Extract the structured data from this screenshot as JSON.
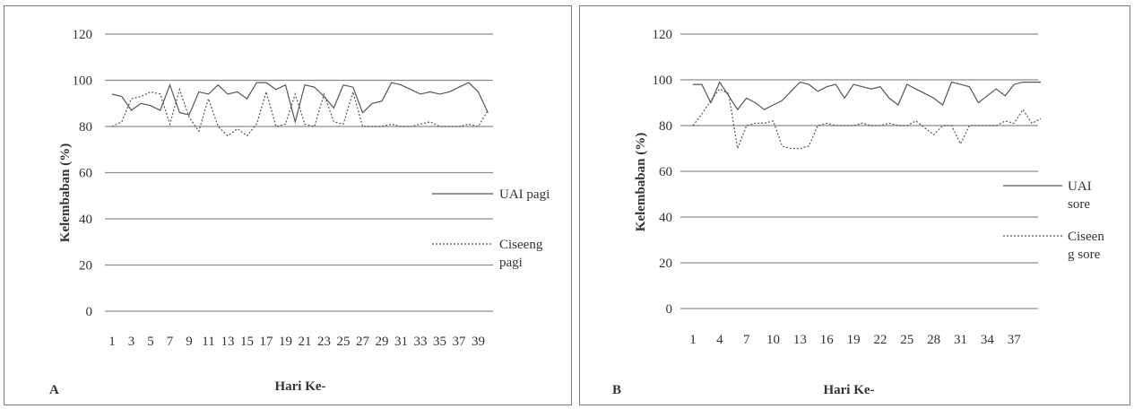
{
  "chart_data": [
    {
      "panel_label": "A",
      "type": "line",
      "xlabel": "Hari Ke-",
      "ylabel": "Kelembaban (%)",
      "ylim": [
        0,
        120
      ],
      "yticks": [
        0,
        20,
        40,
        60,
        80,
        100,
        120
      ],
      "x": [
        1,
        2,
        3,
        4,
        5,
        6,
        7,
        8,
        9,
        10,
        11,
        12,
        13,
        14,
        15,
        16,
        17,
        18,
        19,
        20,
        21,
        22,
        23,
        24,
        25,
        26,
        27,
        28,
        29,
        30,
        31,
        32,
        33,
        34,
        35,
        36,
        37,
        38,
        39,
        40
      ],
      "xtick_labels": [
        "1",
        "3",
        "5",
        "7",
        "9",
        "11",
        "13",
        "15",
        "17",
        "19",
        "21",
        "23",
        "25",
        "27",
        "29",
        "31",
        "33",
        "35",
        "37",
        "39"
      ],
      "grid": true,
      "legend": "right",
      "series": [
        {
          "name": "UAI pagi",
          "style": "solid",
          "values": [
            94,
            93,
            87,
            90,
            89,
            87,
            98,
            86,
            85,
            95,
            94,
            98,
            94,
            95,
            92,
            99,
            99,
            96,
            98,
            82,
            98,
            97,
            93,
            88,
            98,
            97,
            86,
            90,
            91,
            99,
            98,
            96,
            94,
            95,
            94,
            95,
            97,
            99,
            95,
            86
          ]
        },
        {
          "name": "Ciseeng pagi",
          "style": "dotted",
          "values": [
            80,
            82,
            92,
            93,
            95,
            94,
            81,
            96,
            84,
            78,
            92,
            80,
            76,
            79,
            76,
            81,
            95,
            80,
            81,
            94,
            81,
            80,
            94,
            82,
            81,
            95,
            80,
            80,
            80,
            81,
            80,
            80,
            81,
            82,
            80,
            80,
            80,
            81,
            80,
            87
          ]
        }
      ]
    },
    {
      "panel_label": "B",
      "type": "line",
      "xlabel": "Hari Ke-",
      "ylabel": "Kelembaban (%)",
      "ylim": [
        0,
        120
      ],
      "yticks": [
        0,
        20,
        40,
        60,
        80,
        100,
        120
      ],
      "x": [
        1,
        2,
        3,
        4,
        5,
        6,
        7,
        8,
        9,
        10,
        11,
        12,
        13,
        14,
        15,
        16,
        17,
        18,
        19,
        20,
        21,
        22,
        23,
        24,
        25,
        26,
        27,
        28,
        29,
        30,
        31,
        32,
        33,
        34,
        35,
        36,
        37,
        38,
        39,
        40
      ],
      "xtick_labels": [
        "1",
        "4",
        "7",
        "10",
        "13",
        "16",
        "19",
        "22",
        "25",
        "28",
        "31",
        "34",
        "37"
      ],
      "grid": true,
      "legend": "right",
      "series": [
        {
          "name": "UAI sore",
          "style": "solid",
          "values": [
            98,
            98,
            90,
            99,
            93,
            87,
            92,
            90,
            87,
            89,
            91,
            95,
            99,
            98,
            95,
            97,
            98,
            92,
            98,
            97,
            96,
            97,
            92,
            89,
            98,
            96,
            94,
            92,
            89,
            99,
            98,
            97,
            90,
            93,
            96,
            93,
            98,
            99,
            99,
            99
          ]
        },
        {
          "name": "Ciseeng sore",
          "style": "dotted",
          "values": [
            80,
            85,
            91,
            96,
            94,
            70,
            80,
            81,
            81,
            82,
            71,
            70,
            70,
            71,
            80,
            81,
            80,
            80,
            80,
            81,
            80,
            80,
            81,
            80,
            80,
            82,
            79,
            76,
            80,
            80,
            72,
            80,
            80,
            80,
            80,
            82,
            81,
            87,
            81,
            83
          ]
        }
      ]
    }
  ],
  "legend_a": {
    "uai_line1": "UAI pagi",
    "ciseeng_line1": "Ciseeng",
    "ciseeng_line2": "pagi"
  },
  "legend_b": {
    "uai_line1": "UAI",
    "uai_line2": "sore",
    "ciseeng_line1": "Ciseen",
    "ciseeng_line2": "g sore"
  }
}
